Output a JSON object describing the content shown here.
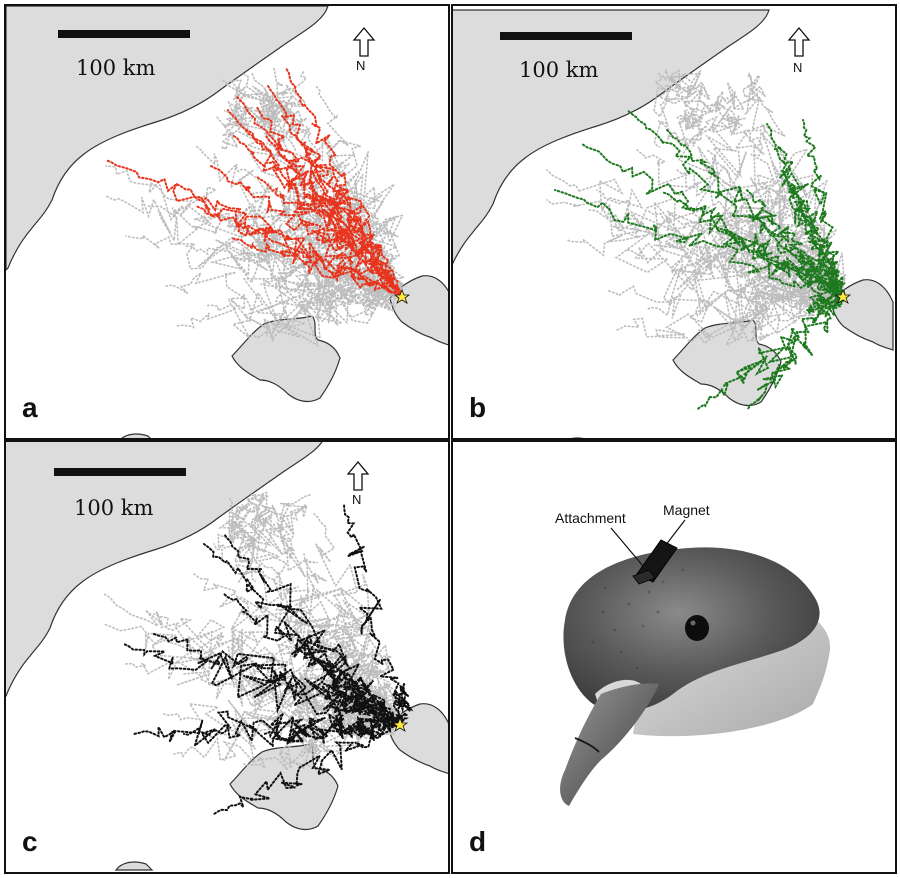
{
  "figure": {
    "scale_bar_label": "100 km",
    "north_label": "N",
    "colors": {
      "land": "#dcdcdc",
      "coast": "#333333",
      "background_tracks": "#bdbdbd",
      "colony_marker": "#ffeb3b"
    },
    "panels": [
      {
        "id": "a",
        "label": "a",
        "track_color": "#e8341c"
      },
      {
        "id": "b",
        "label": "b",
        "track_color": "#1f7a1f"
      },
      {
        "id": "c",
        "label": "c",
        "track_color": "#111111"
      },
      {
        "id": "d",
        "label": "d",
        "annotations": {
          "attachment": "Attachment",
          "magnet": "Magnet"
        }
      }
    ]
  }
}
